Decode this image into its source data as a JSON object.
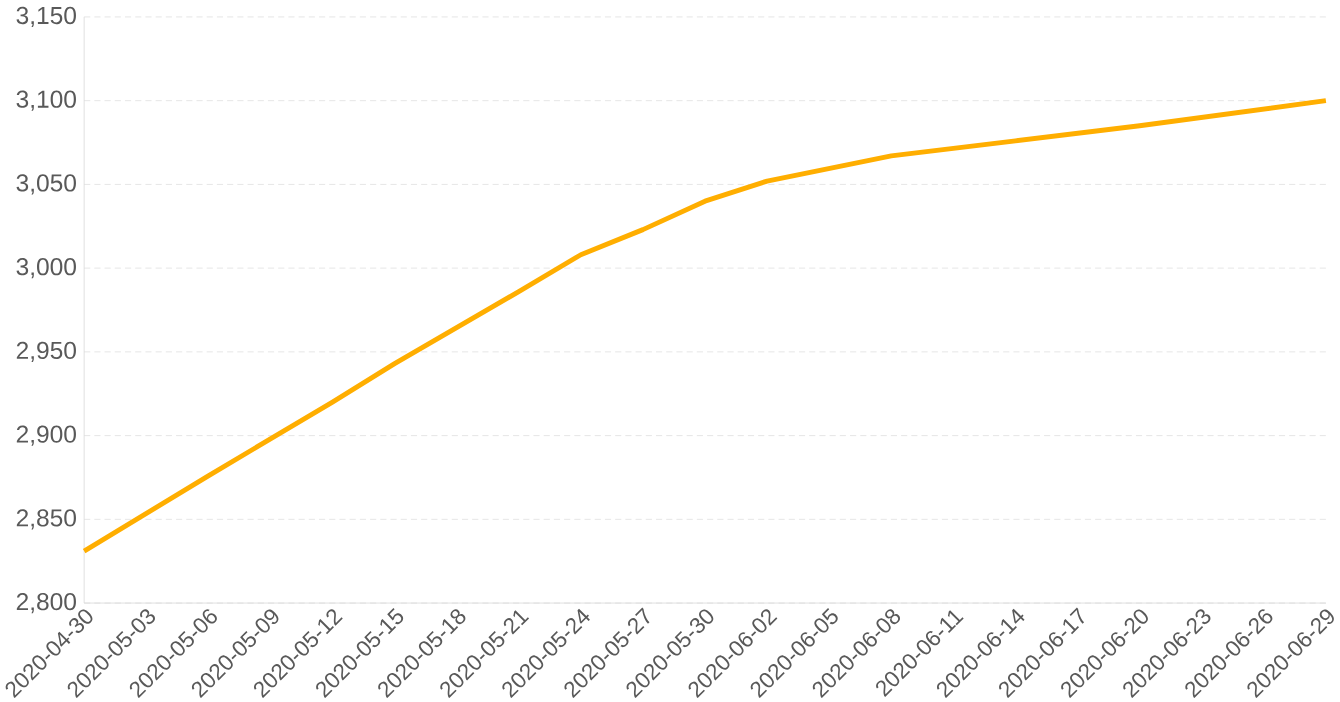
{
  "chart_data": {
    "type": "line",
    "color": "#ffae00",
    "marker": "none",
    "line_style": "solid",
    "grid": "y",
    "x": [
      "2020-04-30",
      "2020-05-06",
      "2020-05-12",
      "2020-05-15",
      "2020-05-21",
      "2020-05-24",
      "2020-05-27",
      "2020-05-30",
      "2020-06-02",
      "2020-06-08",
      "2020-06-14",
      "2020-06-20",
      "2020-06-29"
    ],
    "values": [
      2831,
      2876,
      2920,
      2943,
      2986,
      3008,
      3023,
      3040,
      3052,
      3067,
      3076,
      3085,
      3100
    ],
    "xlim": [
      "2020-04-30",
      "2020-06-29"
    ],
    "xticks": [
      "2020-04-30",
      "2020-05-03",
      "2020-05-06",
      "2020-05-09",
      "2020-05-12",
      "2020-05-15",
      "2020-05-18",
      "2020-05-21",
      "2020-05-24",
      "2020-05-27",
      "2020-05-30",
      "2020-06-02",
      "2020-06-05",
      "2020-06-08",
      "2020-06-11",
      "2020-06-14",
      "2020-06-17",
      "2020-06-20",
      "2020-06-23",
      "2020-06-26",
      "2020-06-29"
    ],
    "ylim": [
      2800,
      3150
    ],
    "yticks": [
      {
        "value": 2800,
        "label": "2,800"
      },
      {
        "value": 2850,
        "label": "2,850"
      },
      {
        "value": 2900,
        "label": "2,900"
      },
      {
        "value": 2950,
        "label": "2,950"
      },
      {
        "value": 3000,
        "label": "3,000"
      },
      {
        "value": 3050,
        "label": "3,050"
      },
      {
        "value": 3100,
        "label": "3,100"
      },
      {
        "value": 3150,
        "label": "3,150"
      }
    ]
  }
}
